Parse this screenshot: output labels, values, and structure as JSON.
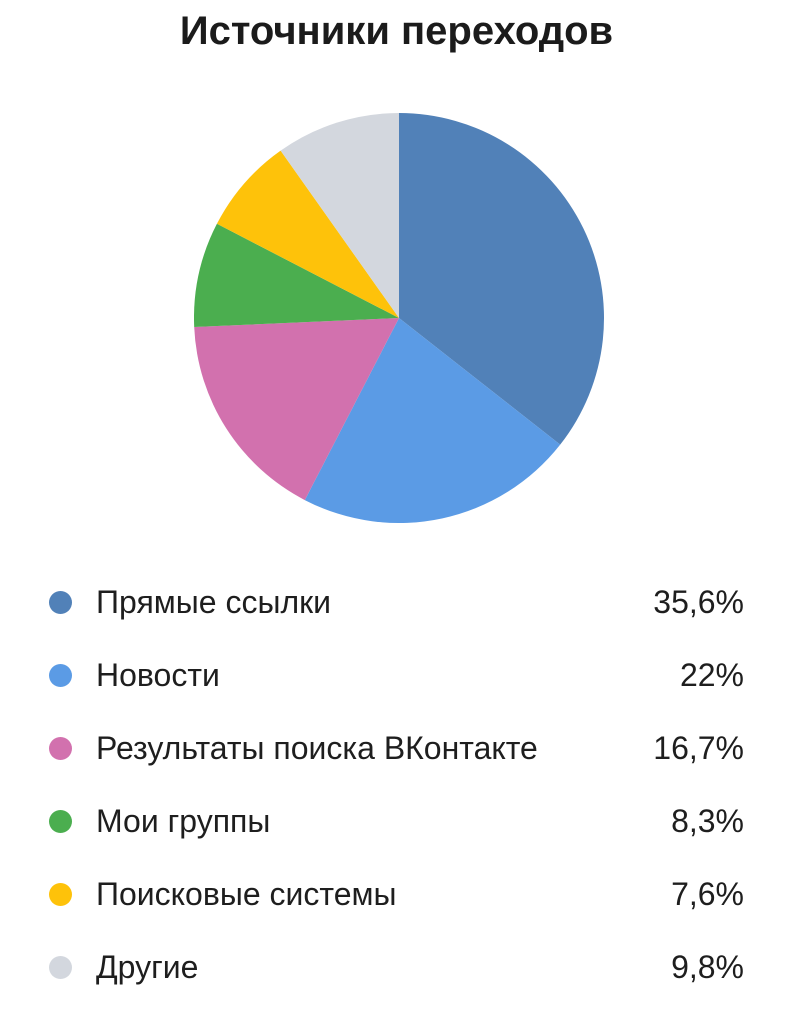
{
  "title": "Источники переходов",
  "chart_data": {
    "type": "pie",
    "title": "Источники переходов",
    "categories": [
      "Прямые ссылки",
      "Новости",
      "Результаты поиска ВКонтакте",
      "Мои группы",
      "Поисковые системы",
      "Другие"
    ],
    "values": [
      35.6,
      22,
      16.7,
      8.3,
      7.6,
      9.8
    ],
    "value_labels": [
      "35,6%",
      "22%",
      "16,7%",
      "8,3%",
      "7,6%",
      "9,8%"
    ],
    "colors": [
      "#5181B8",
      "#5B9BE5",
      "#D271AE",
      "#4BAE4F",
      "#FEC20A",
      "#D3D7DE"
    ],
    "start_angle_deg": 0,
    "direction": "clockwise",
    "legend_position": "bottom",
    "background": "#ffffff",
    "text_color": "#1e1e1e"
  }
}
